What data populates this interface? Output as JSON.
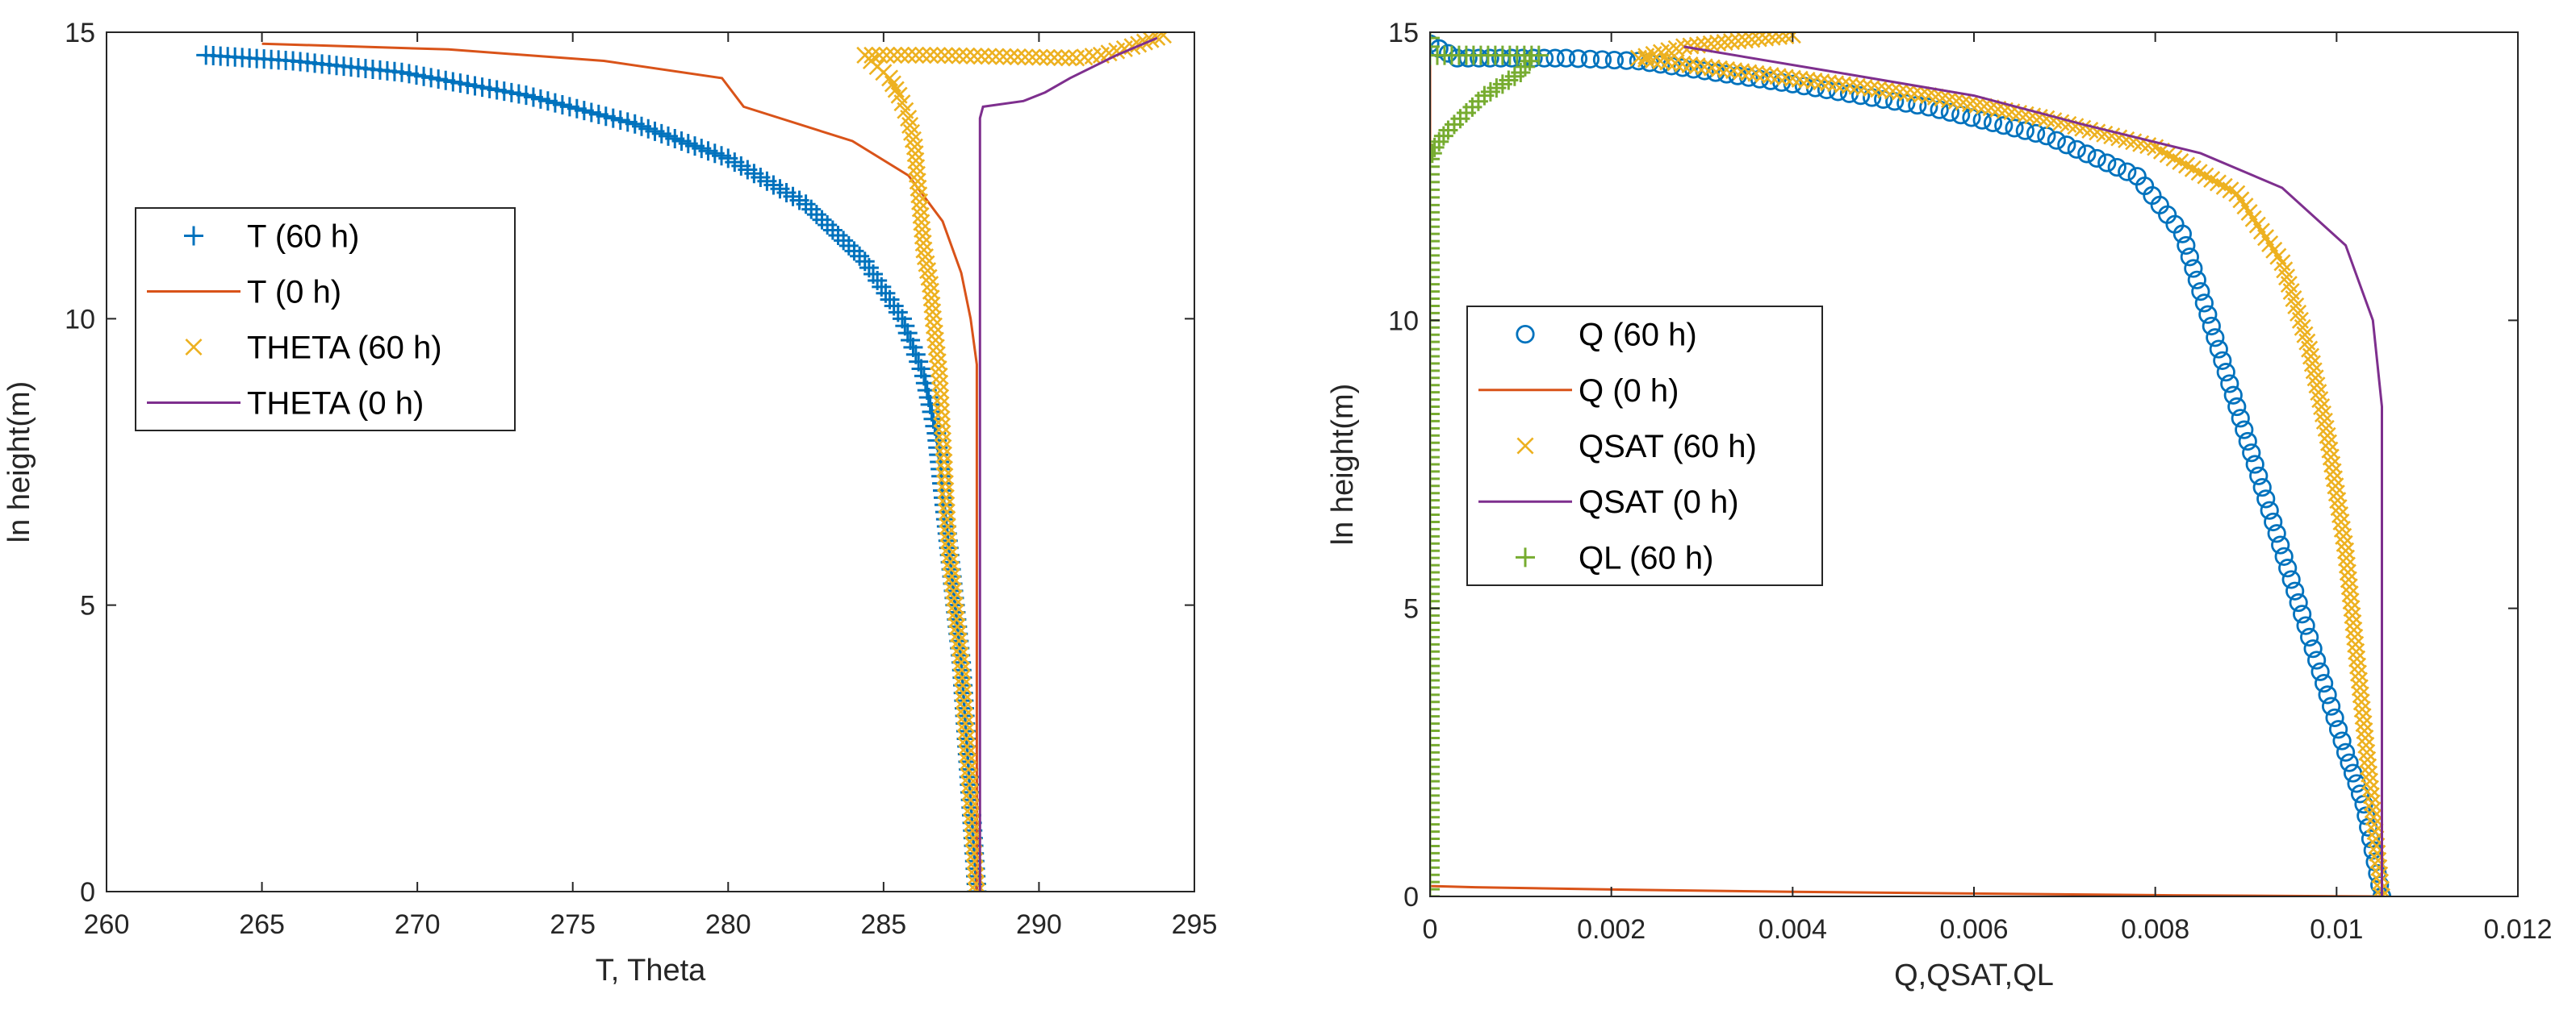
{
  "figure": {
    "colors": {
      "blue": "#0072BD",
      "orange": "#D95319",
      "yellow": "#EDB120",
      "purple": "#7E2F8E",
      "green": "#77AC30",
      "axis": "#262626"
    }
  },
  "chart_data": [
    {
      "type": "line",
      "id": "left",
      "title": "",
      "xlabel": "T, Theta",
      "ylabel": "ln height(m)",
      "xlim": [
        260,
        295
      ],
      "ylim": [
        0,
        15
      ],
      "xticks": [
        260,
        265,
        270,
        275,
        280,
        285,
        290,
        295
      ],
      "yticks": [
        0,
        5,
        10,
        15
      ],
      "grid": false,
      "legend_position": "upper-left",
      "series": [
        {
          "name": "T (60 h)",
          "marker": "plus",
          "line": false,
          "color": "#0072BD",
          "x": [
            288.0,
            287.9,
            287.8,
            287.7,
            287.6,
            287.5,
            287.3,
            287.1,
            286.9,
            286.7,
            286.3,
            285.6,
            284.4,
            282.5,
            280.0,
            277.0,
            273.5,
            269.5,
            266.0,
            263.2
          ],
          "y": [
            0.0,
            0.8,
            1.6,
            2.4,
            3.2,
            4.0,
            5.0,
            6.0,
            7.0,
            8.0,
            9.0,
            10.0,
            11.0,
            12.0,
            12.8,
            13.4,
            13.9,
            14.3,
            14.5,
            14.6
          ]
        },
        {
          "name": "T (0 h)",
          "marker": "none",
          "line": true,
          "color": "#D95319",
          "x": [
            288.0,
            288.0,
            287.8,
            287.5,
            286.9,
            285.8,
            284.0,
            280.5,
            279.8,
            276.0,
            271.0,
            265.0
          ],
          "y": [
            0.0,
            9.2,
            10.0,
            10.8,
            11.7,
            12.5,
            13.1,
            13.7,
            14.2,
            14.5,
            14.7,
            14.8
          ]
        },
        {
          "name": "THETA (60 h)",
          "marker": "x",
          "line": false,
          "color": "#EDB120",
          "x": [
            288.0,
            287.9,
            287.8,
            287.7,
            287.6,
            287.5,
            287.3,
            287.1,
            287.0,
            286.9,
            286.8,
            286.6,
            286.5,
            286.3,
            286.2,
            286.1,
            286.0,
            285.8,
            285.5,
            285.2,
            284.8,
            284.4,
            286.5,
            291.2,
            292.0,
            293.0,
            294.0
          ],
          "y": [
            0.0,
            0.8,
            1.6,
            2.4,
            3.2,
            4.0,
            5.0,
            6.0,
            7.0,
            8.0,
            9.0,
            10.0,
            10.6,
            11.2,
            11.8,
            12.4,
            13.0,
            13.5,
            13.9,
            14.2,
            14.4,
            14.6,
            14.6,
            14.55,
            14.6,
            14.75,
            14.95
          ],
          "points": false
        },
        {
          "name": "THETA (0 h)",
          "marker": "none",
          "line": true,
          "color": "#7E2F8E",
          "x": [
            288.1,
            288.1,
            288.2,
            289.5,
            290.2,
            291.0,
            292.5,
            293.8
          ],
          "y": [
            0.0,
            13.5,
            13.7,
            13.8,
            13.95,
            14.2,
            14.6,
            14.9
          ]
        }
      ]
    },
    {
      "type": "line",
      "id": "right",
      "title": "",
      "xlabel": "Q,QSAT,QL",
      "ylabel": "ln height(m)",
      "xlim": [
        0,
        0.012
      ],
      "ylim": [
        0,
        15
      ],
      "xticks": [
        0,
        0.002,
        0.004,
        0.006,
        0.008,
        0.01,
        0.012
      ],
      "xticklabels": [
        "0",
        "0.002",
        "0.004",
        "0.006",
        "0.008",
        "0.01",
        "0.012"
      ],
      "yticks": [
        0,
        5,
        10,
        15
      ],
      "grid": false,
      "legend_position": "center-left",
      "series": [
        {
          "name": "Q (60 h)",
          "marker": "circle",
          "line": false,
          "color": "#0072BD",
          "x": [
            0.0105,
            0.0104,
            0.0103,
            0.0101,
            0.0099,
            0.0097,
            0.0095,
            0.0093,
            0.0091,
            0.0089,
            0.0087,
            0.0085,
            0.0083,
            0.0078,
            0.0068,
            0.0055,
            0.004,
            0.0023,
            0.0015,
            0.0003,
            0.0
          ],
          "y": [
            0.0,
            0.8,
            1.6,
            2.5,
            3.5,
            4.5,
            5.5,
            6.5,
            7.5,
            8.5,
            9.5,
            10.5,
            11.5,
            12.5,
            13.2,
            13.7,
            14.1,
            14.5,
            14.55,
            14.55,
            14.8
          ]
        },
        {
          "name": "Q (0 h)",
          "marker": "none",
          "line": true,
          "color": "#D95319",
          "x": [
            0.0105,
            0.0082,
            0.006,
            0.004,
            0.002,
            0.0005,
            0.0,
            0.0,
            0.0
          ],
          "y": [
            0.0,
            0.02,
            0.05,
            0.08,
            0.12,
            0.16,
            0.18,
            14.5,
            14.9
          ]
        },
        {
          "name": "QSAT (60 h)",
          "marker": "x",
          "line": false,
          "color": "#EDB120",
          "x": [
            0.0105,
            0.0104,
            0.0103,
            0.0102,
            0.0101,
            0.0099,
            0.0097,
            0.0094,
            0.0089,
            0.008,
            0.0068,
            0.0055,
            0.004,
            0.0023,
            0.0028,
            0.0034,
            0.004
          ],
          "y": [
            0.0,
            1.5,
            3.0,
            4.5,
            6.0,
            8.0,
            9.5,
            11.0,
            12.2,
            13.0,
            13.5,
            13.9,
            14.2,
            14.55,
            14.75,
            14.85,
            14.95
          ]
        },
        {
          "name": "QSAT (0 h)",
          "marker": "none",
          "line": true,
          "color": "#7E2F8E",
          "x": [
            0.0105,
            0.0105,
            0.0104,
            0.0101,
            0.0094,
            0.0085,
            0.0072,
            0.006,
            0.0045,
            0.0028
          ],
          "y": [
            0.0,
            8.5,
            10.0,
            11.3,
            12.3,
            12.9,
            13.4,
            13.9,
            14.3,
            14.75
          ]
        },
        {
          "name": "QL (60 h)",
          "marker": "plus",
          "line": false,
          "color": "#77AC30",
          "x": [
            0.0,
            0.0,
            0.0,
            0.0,
            0.0,
            0.0,
            0.0,
            0.0,
            0.0,
            0.0,
            0.0,
            0.0,
            0.0,
            0.0,
            5e-05,
            0.0002,
            0.0004,
            0.0006,
            0.0008,
            0.001,
            0.0011,
            0.0012,
            0.0008,
            0.0,
            0.0
          ],
          "y": [
            0.0,
            1.0,
            2.0,
            3.0,
            4.0,
            5.0,
            6.0,
            7.0,
            8.0,
            9.0,
            10.0,
            11.0,
            12.0,
            12.8,
            13.0,
            13.3,
            13.6,
            13.9,
            14.1,
            14.3,
            14.5,
            14.6,
            14.6,
            14.6,
            14.9
          ]
        }
      ]
    }
  ]
}
